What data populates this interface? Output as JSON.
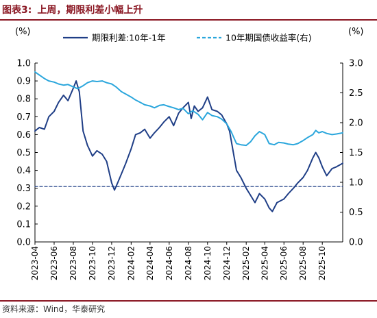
{
  "header": {
    "figure_label": "图表3:",
    "title": "上周，期限利差小幅上升",
    "rule_color": "#8a1622"
  },
  "footer": {
    "source": "资料来源：Wind，华泰研究"
  },
  "chart_data": {
    "type": "line",
    "title": "上周，期限利差小幅上升",
    "left_axis": {
      "unit": "(%)",
      "ylim": [
        0.0,
        1.0
      ],
      "ticks": [
        0.0,
        0.1,
        0.2,
        0.3,
        0.4,
        0.5,
        0.6,
        0.7,
        0.8,
        0.9,
        1.0
      ],
      "tick_labels": [
        "0.0",
        "0.1",
        "0.2",
        "0.3",
        "0.4",
        "0.5",
        "0.6",
        "0.7",
        "0.8",
        "0.9",
        "1.0"
      ]
    },
    "right_axis": {
      "unit": "(%)",
      "ylim": [
        0.0,
        3.0
      ],
      "ticks": [
        0.0,
        0.5,
        1.0,
        1.5,
        2.0,
        2.5,
        3.0
      ],
      "tick_labels": [
        "0.0",
        "0.5",
        "1.0",
        "1.5",
        "2.0",
        "2.5",
        "3.0"
      ]
    },
    "x_axis": {
      "range": [
        "2023-04-01",
        "2025-12-05"
      ],
      "tick_labels": [
        "2023-04",
        "2023-06",
        "2023-08",
        "2023-10",
        "2023-12",
        "2024-02",
        "2024-04",
        "2024-06",
        "2024-08",
        "2024-10",
        "2024-12",
        "2025-02",
        "2025-04",
        "2025-06",
        "2025-08",
        "2025-10"
      ]
    },
    "grid": false,
    "legend": {
      "placement": "top"
    },
    "series": [
      {
        "name": "期限利差:10年-1年",
        "axis": "left",
        "style": "solid",
        "color": "#1f3e86",
        "points": [
          [
            "2023-04-01",
            0.62
          ],
          [
            "2023-04-15",
            0.64
          ],
          [
            "2023-05-01",
            0.63
          ],
          [
            "2023-05-15",
            0.7
          ],
          [
            "2023-06-01",
            0.73
          ],
          [
            "2023-06-15",
            0.78
          ],
          [
            "2023-07-01",
            0.82
          ],
          [
            "2023-07-15",
            0.79
          ],
          [
            "2023-08-01",
            0.86
          ],
          [
            "2023-08-10",
            0.9
          ],
          [
            "2023-08-20",
            0.84
          ],
          [
            "2023-09-01",
            0.62
          ],
          [
            "2023-09-15",
            0.54
          ],
          [
            "2023-10-01",
            0.48
          ],
          [
            "2023-10-15",
            0.51
          ],
          [
            "2023-11-01",
            0.49
          ],
          [
            "2023-11-15",
            0.45
          ],
          [
            "2023-12-01",
            0.33
          ],
          [
            "2023-12-10",
            0.29
          ],
          [
            "2023-12-20",
            0.33
          ],
          [
            "2024-01-01",
            0.38
          ],
          [
            "2024-01-15",
            0.44
          ],
          [
            "2024-02-01",
            0.52
          ],
          [
            "2024-02-15",
            0.6
          ],
          [
            "2024-03-01",
            0.61
          ],
          [
            "2024-03-15",
            0.63
          ],
          [
            "2024-04-01",
            0.58
          ],
          [
            "2024-04-15",
            0.61
          ],
          [
            "2024-05-01",
            0.64
          ],
          [
            "2024-05-15",
            0.67
          ],
          [
            "2024-06-01",
            0.7
          ],
          [
            "2024-06-15",
            0.65
          ],
          [
            "2024-07-01",
            0.72
          ],
          [
            "2024-07-15",
            0.75
          ],
          [
            "2024-08-01",
            0.78
          ],
          [
            "2024-08-10",
            0.69
          ],
          [
            "2024-08-20",
            0.76
          ],
          [
            "2024-09-01",
            0.73
          ],
          [
            "2024-09-15",
            0.75
          ],
          [
            "2024-10-01",
            0.81
          ],
          [
            "2024-10-15",
            0.74
          ],
          [
            "2024-11-01",
            0.73
          ],
          [
            "2024-11-15",
            0.71
          ],
          [
            "2024-12-01",
            0.66
          ],
          [
            "2024-12-10",
            0.62
          ],
          [
            "2024-12-20",
            0.52
          ],
          [
            "2025-01-01",
            0.4
          ],
          [
            "2025-01-15",
            0.36
          ],
          [
            "2025-02-01",
            0.3
          ],
          [
            "2025-02-15",
            0.26
          ],
          [
            "2025-03-01",
            0.22
          ],
          [
            "2025-03-15",
            0.27
          ],
          [
            "2025-04-01",
            0.24
          ],
          [
            "2025-04-15",
            0.19
          ],
          [
            "2025-04-25",
            0.17
          ],
          [
            "2025-05-10",
            0.22
          ],
          [
            "2025-06-01",
            0.24
          ],
          [
            "2025-06-15",
            0.27
          ],
          [
            "2025-07-01",
            0.3
          ],
          [
            "2025-07-15",
            0.33
          ],
          [
            "2025-08-01",
            0.36
          ],
          [
            "2025-08-15",
            0.4
          ],
          [
            "2025-09-01",
            0.47
          ],
          [
            "2025-09-10",
            0.5
          ],
          [
            "2025-09-20",
            0.47
          ],
          [
            "2025-10-01",
            0.42
          ],
          [
            "2025-10-15",
            0.37
          ],
          [
            "2025-11-01",
            0.41
          ],
          [
            "2025-11-15",
            0.42
          ],
          [
            "2025-12-05",
            0.44
          ]
        ]
      },
      {
        "name": "10年期国债收益率(右)",
        "axis": "right",
        "style": "solid",
        "color": "#2aa6dc",
        "points": [
          [
            "2023-04-01",
            2.85
          ],
          [
            "2023-04-15",
            2.8
          ],
          [
            "2023-05-01",
            2.74
          ],
          [
            "2023-05-15",
            2.7
          ],
          [
            "2023-06-01",
            2.68
          ],
          [
            "2023-06-15",
            2.65
          ],
          [
            "2023-07-01",
            2.63
          ],
          [
            "2023-07-15",
            2.64
          ],
          [
            "2023-08-01",
            2.6
          ],
          [
            "2023-08-15",
            2.57
          ],
          [
            "2023-09-01",
            2.62
          ],
          [
            "2023-09-15",
            2.67
          ],
          [
            "2023-10-01",
            2.7
          ],
          [
            "2023-10-15",
            2.69
          ],
          [
            "2023-11-01",
            2.7
          ],
          [
            "2023-11-15",
            2.67
          ],
          [
            "2023-12-01",
            2.65
          ],
          [
            "2023-12-15",
            2.6
          ],
          [
            "2024-01-01",
            2.52
          ],
          [
            "2024-01-15",
            2.48
          ],
          [
            "2024-02-01",
            2.43
          ],
          [
            "2024-02-15",
            2.38
          ],
          [
            "2024-03-01",
            2.34
          ],
          [
            "2024-03-15",
            2.3
          ],
          [
            "2024-04-01",
            2.28
          ],
          [
            "2024-04-15",
            2.25
          ],
          [
            "2024-05-01",
            2.29
          ],
          [
            "2024-05-15",
            2.3
          ],
          [
            "2024-06-01",
            2.27
          ],
          [
            "2024-06-15",
            2.25
          ],
          [
            "2024-07-01",
            2.22
          ],
          [
            "2024-07-15",
            2.24
          ],
          [
            "2024-08-01",
            2.15
          ],
          [
            "2024-08-15",
            2.2
          ],
          [
            "2024-09-01",
            2.14
          ],
          [
            "2024-09-15",
            2.05
          ],
          [
            "2024-10-01",
            2.17
          ],
          [
            "2024-10-15",
            2.12
          ],
          [
            "2024-11-01",
            2.1
          ],
          [
            "2024-11-15",
            2.06
          ],
          [
            "2024-12-01",
            1.98
          ],
          [
            "2024-12-15",
            1.85
          ],
          [
            "2025-01-01",
            1.65
          ],
          [
            "2025-01-15",
            1.63
          ],
          [
            "2025-02-01",
            1.62
          ],
          [
            "2025-02-15",
            1.68
          ],
          [
            "2025-03-01",
            1.78
          ],
          [
            "2025-03-15",
            1.85
          ],
          [
            "2025-04-01",
            1.8
          ],
          [
            "2025-04-15",
            1.65
          ],
          [
            "2025-05-01",
            1.63
          ],
          [
            "2025-05-15",
            1.67
          ],
          [
            "2025-06-01",
            1.66
          ],
          [
            "2025-06-15",
            1.64
          ],
          [
            "2025-07-01",
            1.63
          ],
          [
            "2025-07-15",
            1.65
          ],
          [
            "2025-08-01",
            1.7
          ],
          [
            "2025-08-15",
            1.75
          ],
          [
            "2025-09-01",
            1.8
          ],
          [
            "2025-09-10",
            1.87
          ],
          [
            "2025-09-20",
            1.83
          ],
          [
            "2025-10-01",
            1.85
          ],
          [
            "2025-10-15",
            1.82
          ],
          [
            "2025-11-01",
            1.8
          ],
          [
            "2025-11-15",
            1.81
          ],
          [
            "2025-12-05",
            1.83
          ]
        ]
      },
      {
        "name": "",
        "axis": "left",
        "style": "dashed",
        "color": "#1f3e86",
        "points": [
          [
            "2023-04-01",
            0.31
          ],
          [
            "2025-12-05",
            0.31
          ]
        ]
      }
    ]
  }
}
